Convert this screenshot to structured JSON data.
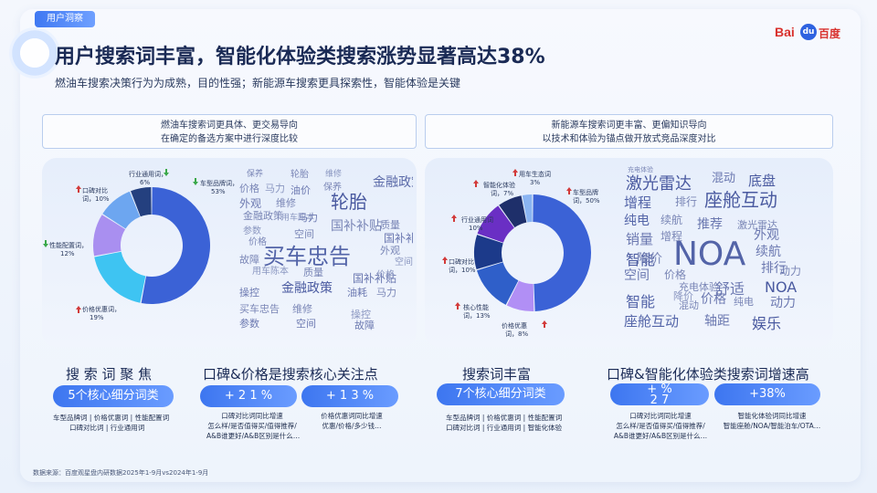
{
  "header": {
    "tag": "用户洞察",
    "title": "用户搜索词丰富，智能化体验类搜索涨势显著高达38%",
    "subtitle": "燃油车搜索决策行为为成熟，目的性强；新能源车搜索更具探索性，智能体验是关键",
    "logo_text_left": "Bai",
    "logo_text_mid": "du",
    "logo_text_right": "百度"
  },
  "colors": {
    "accent": "#3d76f0",
    "donut": [
      "#3b62d6",
      "#3ec4f2",
      "#a98ff0",
      "#6da6f0",
      "#24407f"
    ],
    "donut_right": [
      "#3b62d6",
      "#b18ff5",
      "#2f5fc9",
      "#1c3a8a",
      "#6a2fc4",
      "#1e2f6a",
      "#8ab4f2"
    ],
    "up_arrow": "#d23a3a",
    "down_arrow": "#3aa84a"
  },
  "left_panel": {
    "head_line1": "燃油车搜索词更具体、更交易导向",
    "head_line2": "在确定的备选方案中进行深度比较",
    "chart_data": {
      "type": "pie",
      "title": "",
      "slices": [
        {
          "name": "车型品牌词",
          "value": 53,
          "label": "53%",
          "trend": "down"
        },
        {
          "name": "价格优惠词",
          "value": 19,
          "label": "19%",
          "trend": "up"
        },
        {
          "name": "性能配置词",
          "value": 12,
          "label": "12%",
          "trend": "down"
        },
        {
          "name": "口碑对比词",
          "value": 10,
          "label": "10%",
          "trend": "up"
        },
        {
          "name": "行业通用词",
          "value": 6,
          "label": "6%",
          "trend": "down"
        }
      ]
    },
    "labels": {
      "brand": [
        "车型品牌词，",
        "53%"
      ],
      "price": [
        "价格优惠词，",
        "19%"
      ],
      "perf": [
        "性能配置词，",
        "12%"
      ],
      "wom": [
        "口碑对比",
        "词，10%"
      ],
      "general": [
        "行业通用词，",
        "6%"
      ]
    },
    "cloud": [
      "保养",
      "轮胎",
      "维修",
      "金融政策",
      "价格",
      "马力",
      "油价",
      "保养",
      "外观",
      "维修",
      "轮胎",
      "金融政策",
      "用车陈本",
      "马力",
      "国补补贴",
      "质量",
      "买车忠告",
      "参数",
      "价格",
      "空间",
      "国补补贴",
      "故障",
      "外观",
      "用车陈本",
      "质量",
      "空间",
      "操控",
      "金融政策",
      "国补补贴",
      "买车忠告",
      "油耗",
      "马力",
      "参数",
      "维修",
      "空间",
      "操控",
      "故障",
      "价格"
    ],
    "sec1_title": "搜 索 词 聚 焦",
    "sec1_pill": "5个核心细分词类",
    "sec1_notes": [
      "车型品牌词 | 价格优惠词 | 性能配置词",
      "口碑对比词 | 行业通用词"
    ],
    "sec2_title": "口碑&价格是搜索核心关注点",
    "sec2_pill_a": "+ 2 1 %",
    "sec2_pill_b": "+ 1 3 %",
    "sec2_notes_a": [
      "口碑对比词同比增速",
      "怎么样/是否值得买/值得推荐/",
      "A&B谁更好/A&B区别是什么…"
    ],
    "sec2_notes_b": [
      "价格优惠词同比增速",
      "优惠/价格/多少钱…"
    ]
  },
  "right_panel": {
    "head_line1": "新能源车搜索词更丰富、更偏知识导向",
    "head_line2": "以技术和体验为锚点做开放式竞品深度对比",
    "chart_data": {
      "type": "pie",
      "title": "",
      "slices": [
        {
          "name": "车型品牌词",
          "value": 50,
          "label": "50%",
          "trend": "up"
        },
        {
          "name": "价格优惠词",
          "value": 8,
          "label": "8%",
          "trend": "up"
        },
        {
          "name": "核心性能词",
          "value": 13,
          "label": "13%",
          "trend": "up"
        },
        {
          "name": "口碑对比词",
          "value": 10,
          "label": "10%",
          "trend": "up"
        },
        {
          "name": "行业通用词",
          "value": 10,
          "label": "10%",
          "trend": "up"
        },
        {
          "name": "智能化体验词",
          "value": 7,
          "label": "7%",
          "trend": "up"
        },
        {
          "name": "用车生态词",
          "value": 3,
          "label": "3%",
          "trend": "up"
        }
      ]
    },
    "labels": {
      "brand": [
        "车型品牌",
        "词，50%"
      ],
      "price": [
        "价格优惠",
        "词，",
        "8%"
      ],
      "core": [
        "核心性能",
        "词，13%"
      ],
      "wom": [
        "口碑对比",
        "词，10%"
      ],
      "general": [
        "行业通用词",
        "10%"
      ],
      "smart": [
        "智能化体验",
        "词，7%"
      ],
      "eco": [
        "用车生态词",
        "3%"
      ]
    },
    "cloud": [
      "充电体验",
      "激光雷达",
      "混动",
      "底盘",
      "增程",
      "排行",
      "座舱互动",
      "纯电",
      "续航",
      "推荐",
      "激光雷达",
      "销量",
      "增程",
      "外观",
      "智能",
      "NOA",
      "续航",
      "降价",
      "动力",
      "空间",
      "价格",
      "排行",
      "充电体验",
      "舒适",
      "NOA",
      "降价",
      "智能",
      "混动",
      "价格",
      "纯电",
      "动力",
      "座舱互动",
      "轴距",
      "娱乐"
    ],
    "sec1_title": "搜索词丰富",
    "sec1_pill": "7个核心细分词类",
    "sec1_notes": [
      "车型品牌词 | 价格优惠词 | 性能配置词",
      "口碑对比词 | 行业通用词 | 智能化体验"
    ],
    "sec2_title": "口碑&智能化体验类搜索词增速高",
    "sec2_pill_a_top": "+          %",
    "sec2_pill_a_bottom": "2 7",
    "sec2_pill_b": "+38%",
    "sec2_notes_a": [
      "口碑对比词同比增速",
      "怎么样/是否值得买/值得推荐/",
      "A&B谁更好/A&B区别是什么…"
    ],
    "sec2_notes_b": [
      "智能化体验词同比增速",
      "智能座舱/NOA/智能泊车/OTA…"
    ]
  },
  "footer": {
    "source": "数据来源：百度观星盘内研数据2025年1-9月vs2024年1-9月"
  }
}
